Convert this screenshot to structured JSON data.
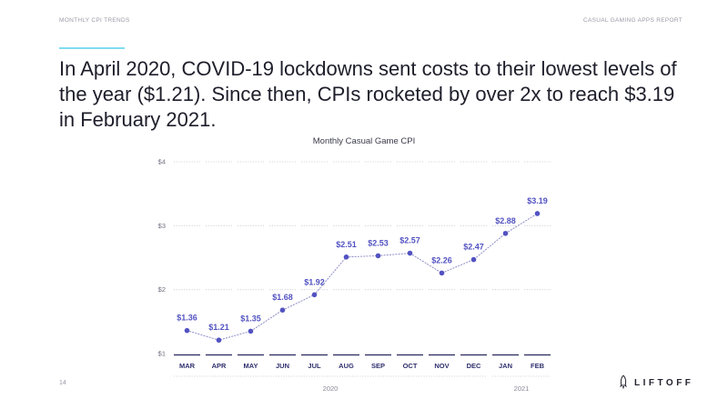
{
  "header": {
    "section": "MONTHLY CPI TRENDS",
    "report": "CASUAL GAMING APPS REPORT"
  },
  "headline": "In April 2020, COVID-19 lockdowns sent costs to their lowest levels of the year ($1.21). Since then, CPIs rocketed by over 2x to reach $3.19 in February 2021.",
  "footer": {
    "page_number": "14",
    "brand": "LIFTOFF",
    "brand_icon": "rocket-icon"
  },
  "colors": {
    "accent": "#7fdcf0",
    "point": "#5252c2",
    "axis_label": "#2f2f6e",
    "grid": "#c9c9d3"
  },
  "chart_data": {
    "type": "line",
    "title": "Monthly Casual Game CPI",
    "categories": [
      "MAR",
      "APR",
      "MAY",
      "JUN",
      "JUL",
      "AUG",
      "SEP",
      "OCT",
      "NOV",
      "DEC",
      "JAN",
      "FEB"
    ],
    "values": [
      1.36,
      1.21,
      1.35,
      1.68,
      1.92,
      2.51,
      2.53,
      2.57,
      2.26,
      2.47,
      2.88,
      3.19
    ],
    "labels": [
      "$1.36",
      "$1.21",
      "$1.35",
      "$1.68",
      "$1.92",
      "$2.51",
      "$2.53",
      "$2.57",
      "$2.26",
      "$2.47",
      "$2.88",
      "$3.19"
    ],
    "yticks": [
      1,
      2,
      3,
      4
    ],
    "ytick_labels": [
      "$1",
      "$2",
      "$3",
      "$4"
    ],
    "ylim": [
      1,
      4
    ],
    "years": [
      {
        "label": "2020",
        "start": 0,
        "end": 9
      },
      {
        "label": "2021",
        "start": 10,
        "end": 11
      }
    ],
    "grid": true,
    "line_style": "dotted"
  }
}
